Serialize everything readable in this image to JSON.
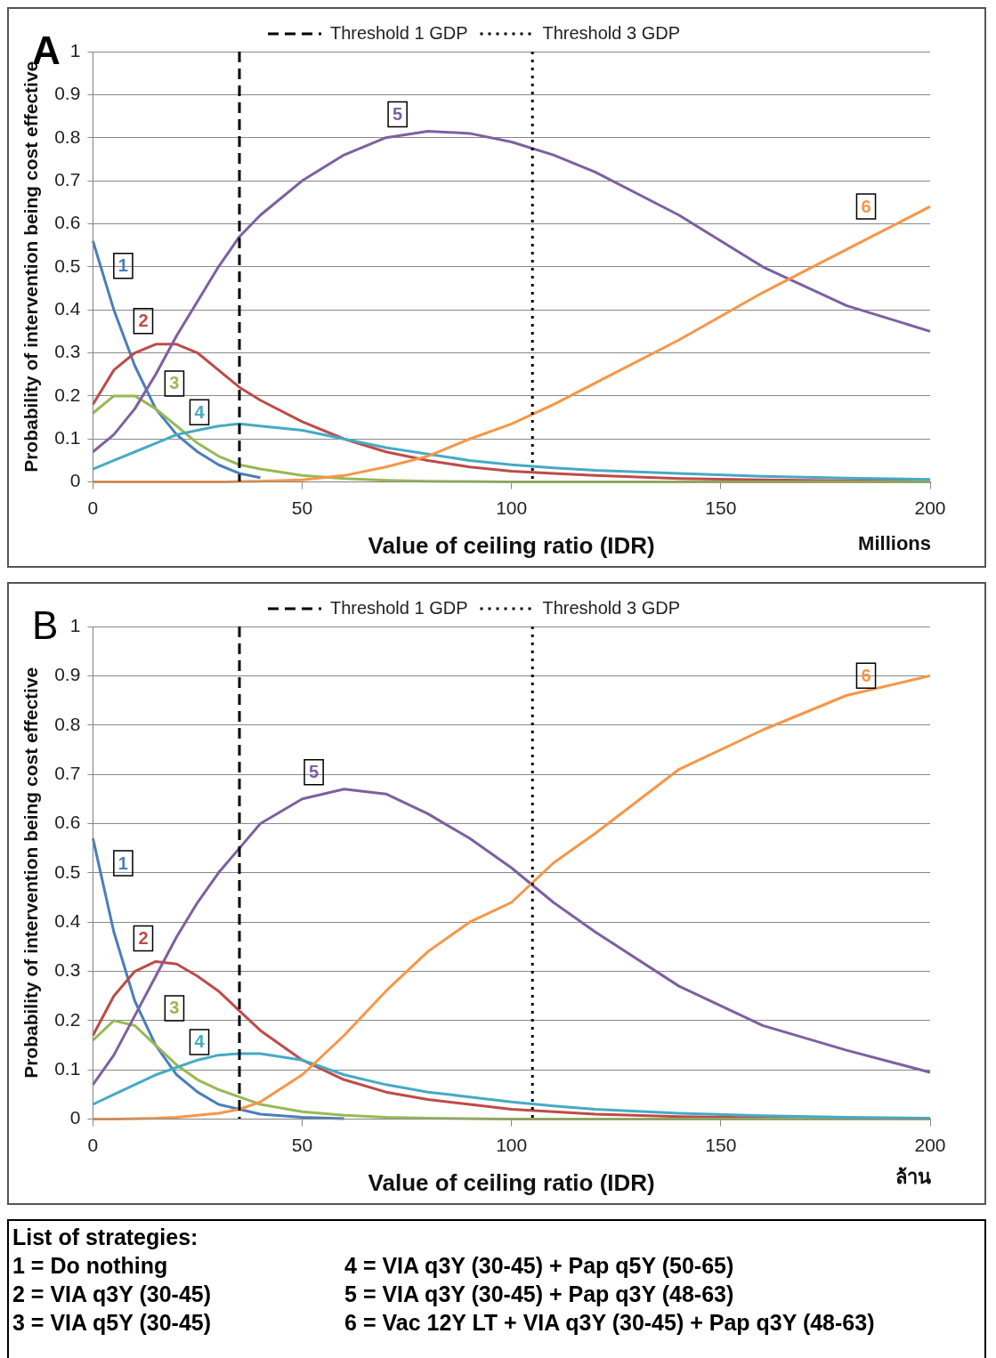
{
  "chart_data": [
    {
      "type": "line",
      "title": "A",
      "xlabel": "Value of ceiling ratio (IDR)",
      "ylabel": "Probability of intervention being cost effective",
      "annotations": [
        "Millions"
      ],
      "x": [
        0,
        5,
        10,
        15,
        20,
        25,
        30,
        35,
        40,
        50,
        60,
        70,
        80,
        90,
        100,
        110,
        120,
        140,
        160,
        180,
        200
      ],
      "xlim": [
        0,
        200
      ],
      "xticks": [
        0,
        50,
        100,
        150,
        200
      ],
      "ylim": [
        0,
        1
      ],
      "yticks": [
        0,
        0.1,
        0.2,
        0.3,
        0.4,
        0.5,
        0.6,
        0.7,
        0.8,
        0.9,
        1
      ],
      "grid": "y",
      "legend": "top",
      "marker": "none",
      "line_style": "solid",
      "ref_lines": [
        {
          "axis": "x",
          "value": 35,
          "label": "Threshold 1 GDP",
          "color": "#000000",
          "line_style": "dashed"
        },
        {
          "axis": "x",
          "value": 105,
          "label": "Threshold 3 GDP",
          "color": "#000000",
          "line_style": "dotted"
        }
      ],
      "series": [
        {
          "name": "1",
          "color": "#4a7ebb",
          "values": [
            0.56,
            0.4,
            0.27,
            0.17,
            0.11,
            0.07,
            0.04,
            0.02,
            0.01,
            null,
            null,
            null,
            null,
            null,
            null,
            null,
            null,
            null,
            null,
            null,
            null
          ]
        },
        {
          "name": "2",
          "color": "#be4b48",
          "values": [
            0.18,
            0.26,
            0.3,
            0.32,
            0.32,
            0.3,
            0.26,
            0.22,
            0.19,
            0.14,
            0.1,
            0.07,
            0.05,
            0.035,
            0.025,
            0.02,
            0.015,
            0.008,
            0.005,
            0.003,
            0.002
          ]
        },
        {
          "name": "3",
          "color": "#98b954",
          "values": [
            0.16,
            0.2,
            0.2,
            0.17,
            0.13,
            0.09,
            0.06,
            0.04,
            0.03,
            0.015,
            0.008,
            0.004,
            0.002,
            0.001,
            0,
            0,
            0,
            0,
            0,
            0,
            0
          ]
        },
        {
          "name": "4",
          "color": "#46aac5",
          "values": [
            0.03,
            0.05,
            0.07,
            0.09,
            0.11,
            0.12,
            0.13,
            0.135,
            0.13,
            0.12,
            0.1,
            0.08,
            0.065,
            0.05,
            0.04,
            0.033,
            0.027,
            0.02,
            0.013,
            0.009,
            0.006
          ]
        },
        {
          "name": "5",
          "color": "#7d60a0",
          "values": [
            0.07,
            0.11,
            0.17,
            0.25,
            0.34,
            0.42,
            0.5,
            0.57,
            0.62,
            0.7,
            0.76,
            0.8,
            0.815,
            0.81,
            0.79,
            0.76,
            0.72,
            0.62,
            0.5,
            0.41,
            0.35
          ]
        },
        {
          "name": "6",
          "color": "#f79646",
          "values": [
            0,
            0,
            0,
            0,
            0,
            0,
            0,
            0.001,
            0.002,
            0.005,
            0.015,
            0.035,
            0.06,
            0.1,
            0.135,
            0.18,
            0.23,
            0.33,
            0.44,
            0.54,
            0.64
          ]
        }
      ]
    },
    {
      "type": "line",
      "title": "B",
      "xlabel": "Value of ceiling ratio (IDR)",
      "ylabel": "Probability of intervention being cost effective",
      "annotations": [
        "ล้าน"
      ],
      "x": [
        0,
        5,
        10,
        15,
        20,
        25,
        30,
        35,
        40,
        50,
        60,
        70,
        80,
        90,
        100,
        110,
        120,
        140,
        160,
        180,
        200
      ],
      "xlim": [
        0,
        200
      ],
      "xticks": [
        0,
        50,
        100,
        150,
        200
      ],
      "ylim": [
        0,
        1
      ],
      "yticks": [
        0,
        0.1,
        0.2,
        0.3,
        0.4,
        0.5,
        0.6,
        0.7,
        0.8,
        0.9,
        1
      ],
      "grid": "y",
      "legend": "top",
      "marker": "none",
      "line_style": "solid",
      "ref_lines": [
        {
          "axis": "x",
          "value": 35,
          "label": "Threshold 1 GDP",
          "color": "#000000",
          "line_style": "dashed"
        },
        {
          "axis": "x",
          "value": 105,
          "label": "Threshold 3 GDP",
          "color": "#000000",
          "line_style": "dotted"
        }
      ],
      "series": [
        {
          "name": "1",
          "color": "#4a7ebb",
          "values": [
            0.57,
            0.38,
            0.24,
            0.15,
            0.09,
            0.055,
            0.03,
            0.02,
            0.01,
            0.004,
            0.001,
            null,
            null,
            null,
            null,
            null,
            null,
            null,
            null,
            null,
            null
          ]
        },
        {
          "name": "2",
          "color": "#be4b48",
          "values": [
            0.17,
            0.25,
            0.3,
            0.32,
            0.315,
            0.29,
            0.26,
            0.22,
            0.18,
            0.12,
            0.08,
            0.055,
            0.04,
            0.03,
            0.02,
            0.015,
            0.01,
            0.005,
            0.003,
            0.002,
            0.001
          ]
        },
        {
          "name": "3",
          "color": "#98b954",
          "values": [
            0.16,
            0.2,
            0.19,
            0.15,
            0.11,
            0.08,
            0.06,
            0.045,
            0.03,
            0.015,
            0.008,
            0.004,
            0.002,
            0.001,
            0,
            0,
            0,
            0,
            0,
            0,
            0
          ]
        },
        {
          "name": "4",
          "color": "#46aac5",
          "values": [
            0.03,
            0.05,
            0.07,
            0.09,
            0.105,
            0.12,
            0.13,
            0.133,
            0.133,
            0.12,
            0.09,
            0.07,
            0.055,
            0.045,
            0.035,
            0.027,
            0.02,
            0.012,
            0.007,
            0.004,
            0.002
          ]
        },
        {
          "name": "5",
          "color": "#7d60a0",
          "values": [
            0.07,
            0.13,
            0.21,
            0.29,
            0.37,
            0.44,
            0.5,
            0.55,
            0.6,
            0.65,
            0.67,
            0.66,
            0.62,
            0.57,
            0.51,
            0.44,
            0.38,
            0.27,
            0.19,
            0.14,
            0.095
          ]
        },
        {
          "name": "6",
          "color": "#f79646",
          "values": [
            0,
            0,
            0.001,
            0.002,
            0.004,
            0.008,
            0.012,
            0.02,
            0.035,
            0.09,
            0.17,
            0.26,
            0.34,
            0.4,
            0.44,
            0.52,
            0.58,
            0.71,
            0.79,
            0.86,
            0.9
          ]
        }
      ]
    },
    {
      "type": "other",
      "title": "List of strategies:",
      "annotations": [
        "1 = Do nothing",
        "2 = VIA q3Y (30-45)",
        "3 = VIA q5Y (30-45)",
        "4 = VIA q3Y (30-45) + Pap q5Y (50-65)",
        "5 = VIA q3Y (30-45) + Pap q3Y (48-63)",
        "6 = Vac 12Y LT + VIA q3Y (30-45) + Pap q3Y (48-63)"
      ]
    }
  ]
}
